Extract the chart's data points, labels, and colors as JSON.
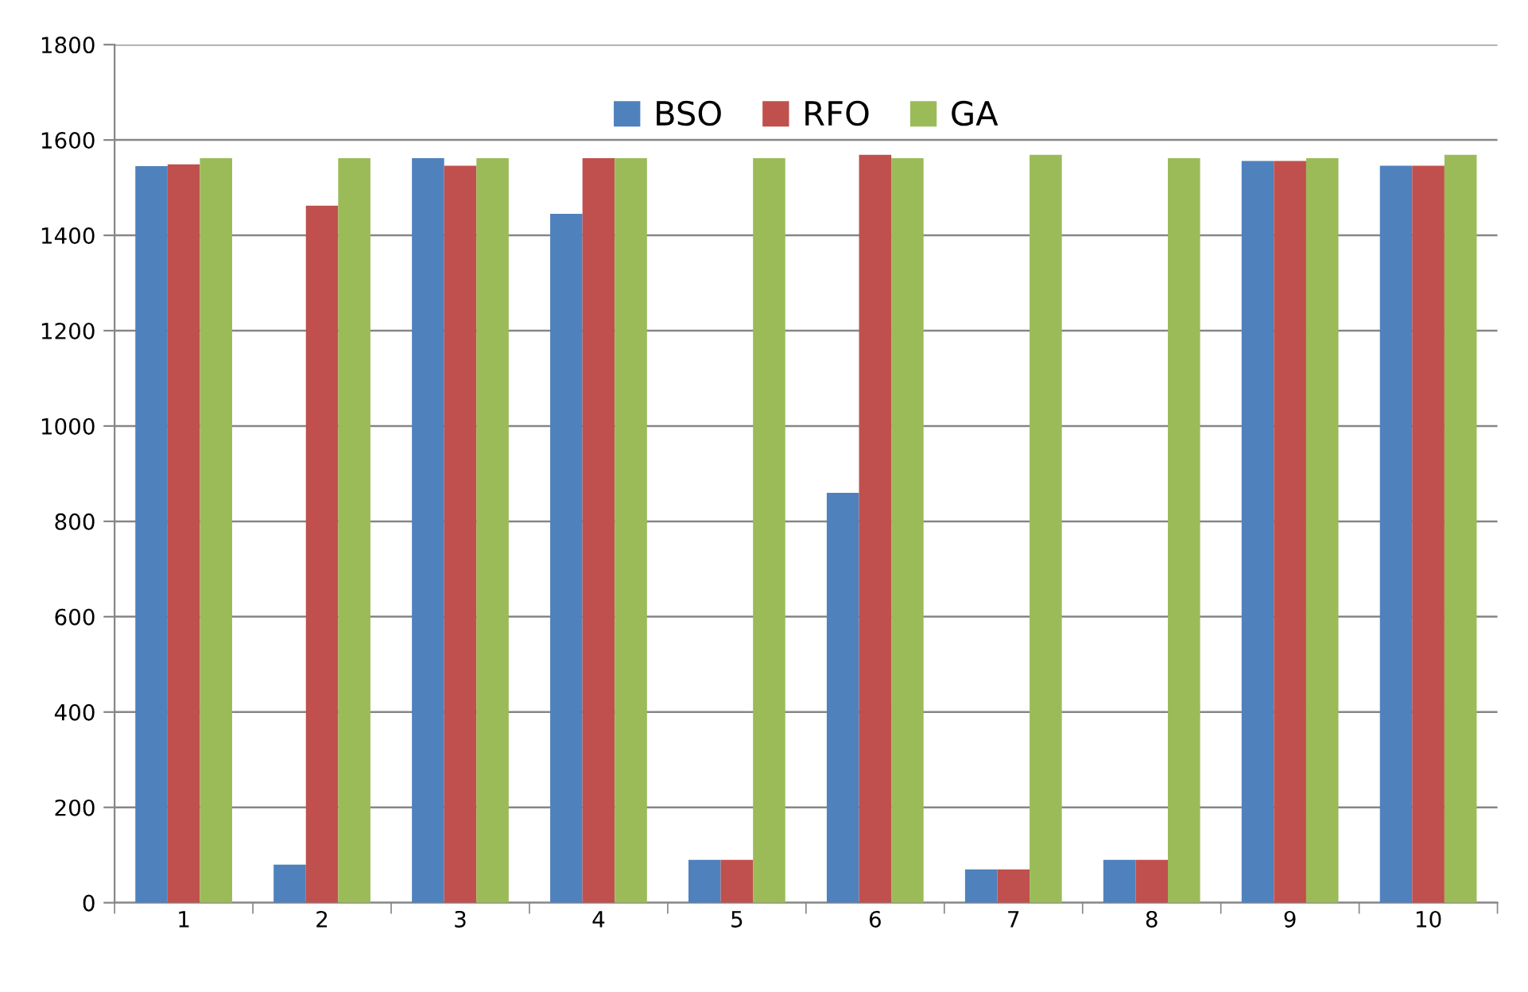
{
  "chart_data": {
    "type": "bar",
    "categories": [
      "1",
      "2",
      "3",
      "4",
      "5",
      "6",
      "7",
      "8",
      "9",
      "10"
    ],
    "series": [
      {
        "name": "BSO",
        "color": "#4f81bd",
        "values": [
          1545,
          80,
          1562,
          1445,
          90,
          860,
          70,
          90,
          1556,
          1546
        ]
      },
      {
        "name": "RFO",
        "color": "#c0504d",
        "values": [
          1549,
          1462,
          1546,
          1562,
          90,
          1569,
          70,
          90,
          1556,
          1546
        ]
      },
      {
        "name": "GA",
        "color": "#9bbb59",
        "values": [
          1562,
          1562,
          1562,
          1562,
          1562,
          1562,
          1569,
          1562,
          1562,
          1569
        ]
      }
    ],
    "ylim": [
      0,
      1800
    ],
    "yticks": [
      0,
      200,
      400,
      600,
      800,
      1000,
      1200,
      1400,
      1600,
      1800
    ],
    "grid": "y",
    "legend": "top"
  }
}
